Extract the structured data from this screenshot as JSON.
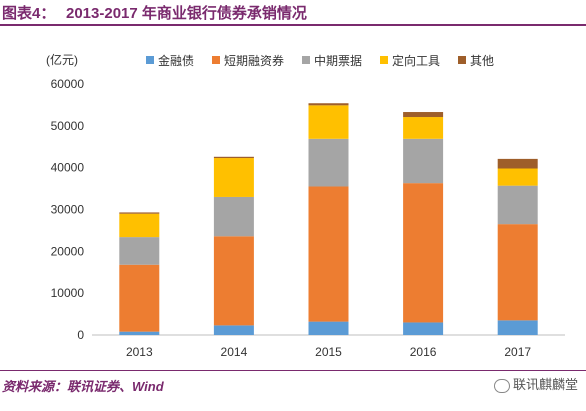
{
  "header": {
    "label": "图表4：",
    "title": "2013-2017 年商业银行债券承销情况"
  },
  "footer": {
    "source": "资料来源：联讯证券、Wind",
    "watermark": "联讯麒麟堂"
  },
  "colors": {
    "brand": "#7a2a6e"
  },
  "chart_data": {
    "type": "bar",
    "stacked": true,
    "unit_label": "(亿元)",
    "categories": [
      "2013",
      "2014",
      "2015",
      "2016",
      "2017"
    ],
    "ylim": [
      0,
      60000
    ],
    "yticks": [
      0,
      10000,
      20000,
      30000,
      40000,
      50000,
      60000
    ],
    "grid": false,
    "legend_position": "top",
    "series": [
      {
        "name": "金融债",
        "color": "#5b9bd5",
        "values": [
          800,
          2300,
          3200,
          3000,
          3500
        ]
      },
      {
        "name": "短期融资券",
        "color": "#ed7d31",
        "values": [
          16000,
          21300,
          32300,
          33300,
          23000
        ]
      },
      {
        "name": "中期票据",
        "color": "#a5a5a5",
        "values": [
          6600,
          9400,
          11400,
          10600,
          9200
        ]
      },
      {
        "name": "定向工具",
        "color": "#ffc000",
        "values": [
          5600,
          9300,
          8000,
          5200,
          4100
        ]
      },
      {
        "name": "其他",
        "color": "#9e5e2a",
        "values": [
          300,
          300,
          500,
          1200,
          2300
        ]
      }
    ]
  }
}
